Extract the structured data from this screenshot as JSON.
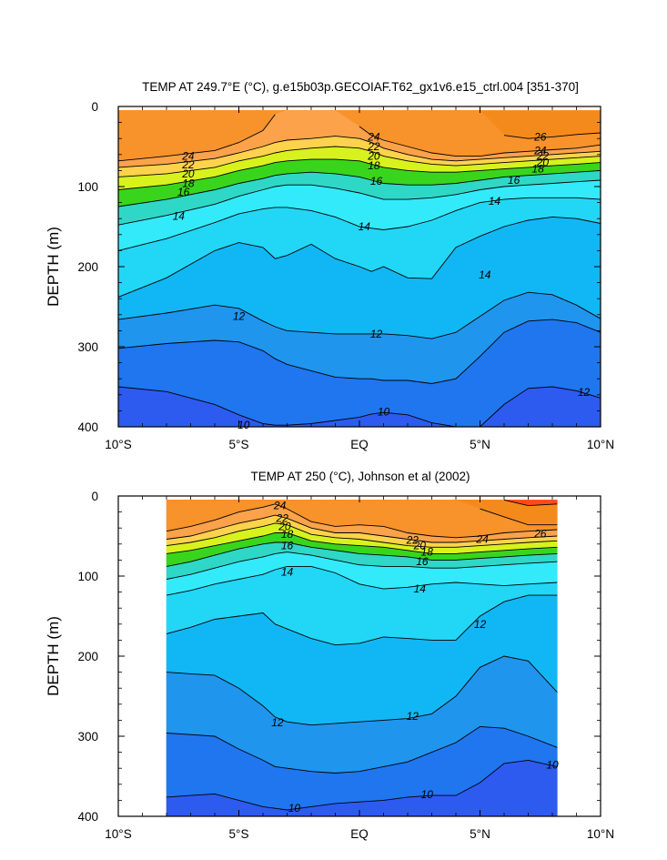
{
  "colors": {
    "levels": [
      [
        "#2d5bf0",
        0,
        10
      ],
      [
        "#1f76ef",
        10,
        11
      ],
      [
        "#1f95ee",
        11,
        12
      ],
      [
        "#11b7f4",
        12,
        13
      ],
      [
        "#22d6f6",
        13,
        14
      ],
      [
        "#33eafa",
        14,
        15
      ],
      [
        "#2fd7c6",
        15,
        16
      ],
      [
        "#22c36a",
        16,
        17
      ],
      [
        "#39d51d",
        17,
        18
      ],
      [
        "#8de81a",
        18,
        19
      ],
      [
        "#d8f21d",
        19,
        20
      ],
      [
        "#fff22a",
        20,
        21
      ],
      [
        "#fed24c",
        21,
        22
      ],
      [
        "#fbba59",
        22,
        23
      ],
      [
        "#fba24a",
        23,
        24
      ],
      [
        "#f8922a",
        24,
        26
      ],
      [
        "#f58a1c",
        26,
        27
      ],
      [
        "#ff4a12",
        27,
        40
      ]
    ]
  },
  "chart_data": [
    {
      "type": "contour",
      "title": "TEMP AT 249.7°E (°C), g.e15b03p.GECOIAF.T62_gx1v6.e15_ctrl.004 [351-370]",
      "xlabel": "",
      "ylabel": "DEPTH (m)",
      "xlim": [
        -10,
        10
      ],
      "ylim": [
        400,
        0
      ],
      "x_ticks": [
        "10°S",
        "5°S",
        "EQ",
        "5°N",
        "10°N"
      ],
      "y_ticks": [
        "0",
        "100",
        "200",
        "300",
        "400"
      ],
      "data_xlim": [
        -10,
        10
      ],
      "data_top": 5,
      "contour_labels": [
        "24",
        "22",
        "20",
        "18",
        "16",
        "14",
        "24",
        "22",
        "20",
        "18",
        "16",
        "14",
        "26",
        "24",
        "22",
        "20",
        "18",
        "16",
        "14",
        "14",
        "12",
        "12",
        "12",
        "10",
        "10",
        "10"
      ],
      "profiles_x": [
        -10,
        -8,
        -6,
        -5,
        -4,
        -3.5,
        -3,
        -2,
        -1,
        0,
        0.5,
        1,
        2,
        3,
        4,
        5,
        6,
        7,
        8,
        9,
        10
      ],
      "isotherms": [
        {
          "t": 26,
          "d": [
            null,
            null,
            null,
            null,
            null,
            null,
            null,
            null,
            null,
            null,
            null,
            null,
            null,
            null,
            null,
            null,
            36,
            40,
            38,
            35,
            33
          ]
        },
        {
          "t": 24,
          "d": [
            68,
            62,
            55,
            45,
            30,
            10,
            null,
            null,
            null,
            25,
            36,
            42,
            50,
            58,
            62,
            62,
            58,
            56,
            54,
            52,
            48
          ]
        },
        {
          "t": 22,
          "d": [
            76,
            72,
            65,
            58,
            50,
            45,
            42,
            40,
            37,
            40,
            45,
            52,
            60,
            66,
            68,
            66,
            64,
            62,
            60,
            58,
            56
          ]
        },
        {
          "t": 20,
          "d": [
            88,
            84,
            76,
            68,
            62,
            58,
            55,
            52,
            50,
            52,
            56,
            62,
            68,
            72,
            74,
            72,
            70,
            68,
            66,
            64,
            62
          ]
        },
        {
          "t": 18,
          "d": [
            104,
            98,
            88,
            80,
            74,
            70,
            68,
            66,
            66,
            68,
            72,
            76,
            80,
            82,
            82,
            80,
            78,
            76,
            74,
            72,
            70
          ]
        },
        {
          "t": 16,
          "d": [
            125,
            116,
            104,
            96,
            90,
            86,
            84,
            82,
            84,
            88,
            92,
            96,
            98,
            98,
            96,
            92,
            88,
            86,
            84,
            82,
            80
          ]
        },
        {
          "t": 15,
          "d": [
            148,
            136,
            122,
            112,
            104,
            100,
            98,
            98,
            102,
            108,
            112,
            116,
            116,
            114,
            110,
            104,
            100,
            98,
            96,
            94,
            92
          ]
        },
        {
          "t": 14,
          "d": [
            180,
            165,
            145,
            134,
            128,
            126,
            126,
            130,
            138,
            150,
            152,
            154,
            150,
            142,
            130,
            120,
            116,
            114,
            114,
            114,
            116
          ]
        },
        {
          "t": 13,
          "d": [
            238,
            214,
            180,
            170,
            176,
            190,
            186,
            172,
            190,
            200,
            206,
            200,
            214,
            215,
            176,
            162,
            150,
            142,
            138,
            140,
            146
          ]
        },
        {
          "t": 12,
          "d": [
            266,
            258,
            248,
            252,
            268,
            275,
            280,
            282,
            284,
            284,
            284,
            284,
            286,
            290,
            282,
            262,
            242,
            232,
            235,
            248,
            265
          ]
        },
        {
          "t": 11,
          "d": [
            302,
            296,
            292,
            294,
            305,
            315,
            322,
            330,
            338,
            340,
            340,
            342,
            342,
            346,
            340,
            312,
            282,
            268,
            266,
            270,
            282
          ]
        },
        {
          "t": 10,
          "d": [
            350,
            356,
            372,
            385,
            396,
            398,
            398,
            396,
            392,
            388,
            384,
            382,
            385,
            395,
            402,
            402,
            372,
            352,
            350,
            355,
            364
          ]
        }
      ]
    },
    {
      "type": "contour",
      "title": "TEMP AT 250 (°C), Johnson et al (2002)",
      "xlabel": "",
      "ylabel": "DEPTH (m)",
      "xlim": [
        -10,
        10
      ],
      "ylim": [
        400,
        0
      ],
      "x_ticks": [
        "10°S",
        "5°S",
        "EQ",
        "5°N",
        "10°N"
      ],
      "y_ticks": [
        "0",
        "100",
        "200",
        "300",
        "400"
      ],
      "data_xlim": [
        -8,
        8.2
      ],
      "data_top": 5,
      "contour_labels": [
        "24",
        "22",
        "20",
        "18",
        "16",
        "14",
        "22",
        "20",
        "18",
        "16",
        "24",
        "26",
        "14",
        "12",
        "12",
        "12",
        "10",
        "10",
        "10"
      ],
      "profiles_x": [
        -8,
        -7,
        -6,
        -5,
        -4,
        -3.5,
        -3,
        -2,
        -1,
        0,
        1,
        2,
        3,
        4,
        5,
        6,
        7,
        8.2
      ],
      "isotherms": [
        {
          "t": 27,
          "d": [
            null,
            null,
            null,
            null,
            null,
            null,
            null,
            null,
            null,
            null,
            null,
            null,
            null,
            null,
            null,
            5,
            12,
            10
          ]
        },
        {
          "t": 26,
          "d": [
            null,
            null,
            null,
            null,
            null,
            null,
            null,
            null,
            null,
            null,
            null,
            null,
            null,
            null,
            16,
            26,
            36,
            36
          ]
        },
        {
          "t": 24,
          "d": [
            44,
            38,
            30,
            20,
            14,
            10,
            16,
            32,
            38,
            36,
            38,
            46,
            50,
            52,
            50,
            46,
            44,
            42
          ]
        },
        {
          "t": 22,
          "d": [
            54,
            50,
            42,
            34,
            28,
            24,
            28,
            40,
            46,
            46,
            50,
            54,
            58,
            58,
            56,
            54,
            52,
            50
          ]
        },
        {
          "t": 20,
          "d": [
            62,
            58,
            52,
            44,
            38,
            34,
            36,
            48,
            52,
            54,
            58,
            62,
            64,
            64,
            62,
            60,
            58,
            56
          ]
        },
        {
          "t": 18,
          "d": [
            72,
            68,
            62,
            56,
            50,
            46,
            46,
            56,
            60,
            62,
            64,
            68,
            72,
            72,
            70,
            68,
            66,
            64
          ]
        },
        {
          "t": 16,
          "d": [
            88,
            82,
            74,
            66,
            60,
            58,
            58,
            64,
            68,
            72,
            74,
            76,
            80,
            80,
            78,
            76,
            74,
            72
          ]
        },
        {
          "t": 15,
          "d": [
            104,
            98,
            90,
            82,
            76,
            72,
            70,
            74,
            80,
            86,
            88,
            88,
            90,
            90,
            88,
            86,
            84,
            82
          ]
        },
        {
          "t": 14,
          "d": [
            124,
            118,
            110,
            104,
            98,
            92,
            88,
            88,
            96,
            110,
            116,
            114,
            110,
            108,
            110,
            112,
            110,
            108
          ]
        },
        {
          "t": 13,
          "d": [
            172,
            164,
            154,
            150,
            146,
            160,
            166,
            178,
            186,
            184,
            176,
            178,
            180,
            180,
            150,
            132,
            124,
            124
          ]
        },
        {
          "t": 12,
          "d": [
            220,
            222,
            224,
            240,
            262,
            276,
            282,
            286,
            284,
            282,
            280,
            278,
            272,
            250,
            214,
            200,
            206,
            245
          ]
        },
        {
          "t": 11,
          "d": [
            296,
            298,
            300,
            316,
            330,
            338,
            340,
            344,
            346,
            344,
            338,
            332,
            320,
            308,
            288,
            290,
            300,
            314
          ]
        },
        {
          "t": 10,
          "d": [
            376,
            374,
            372,
            380,
            388,
            390,
            392,
            388,
            384,
            382,
            380,
            376,
            374,
            374,
            358,
            334,
            330,
            338
          ]
        }
      ]
    }
  ]
}
